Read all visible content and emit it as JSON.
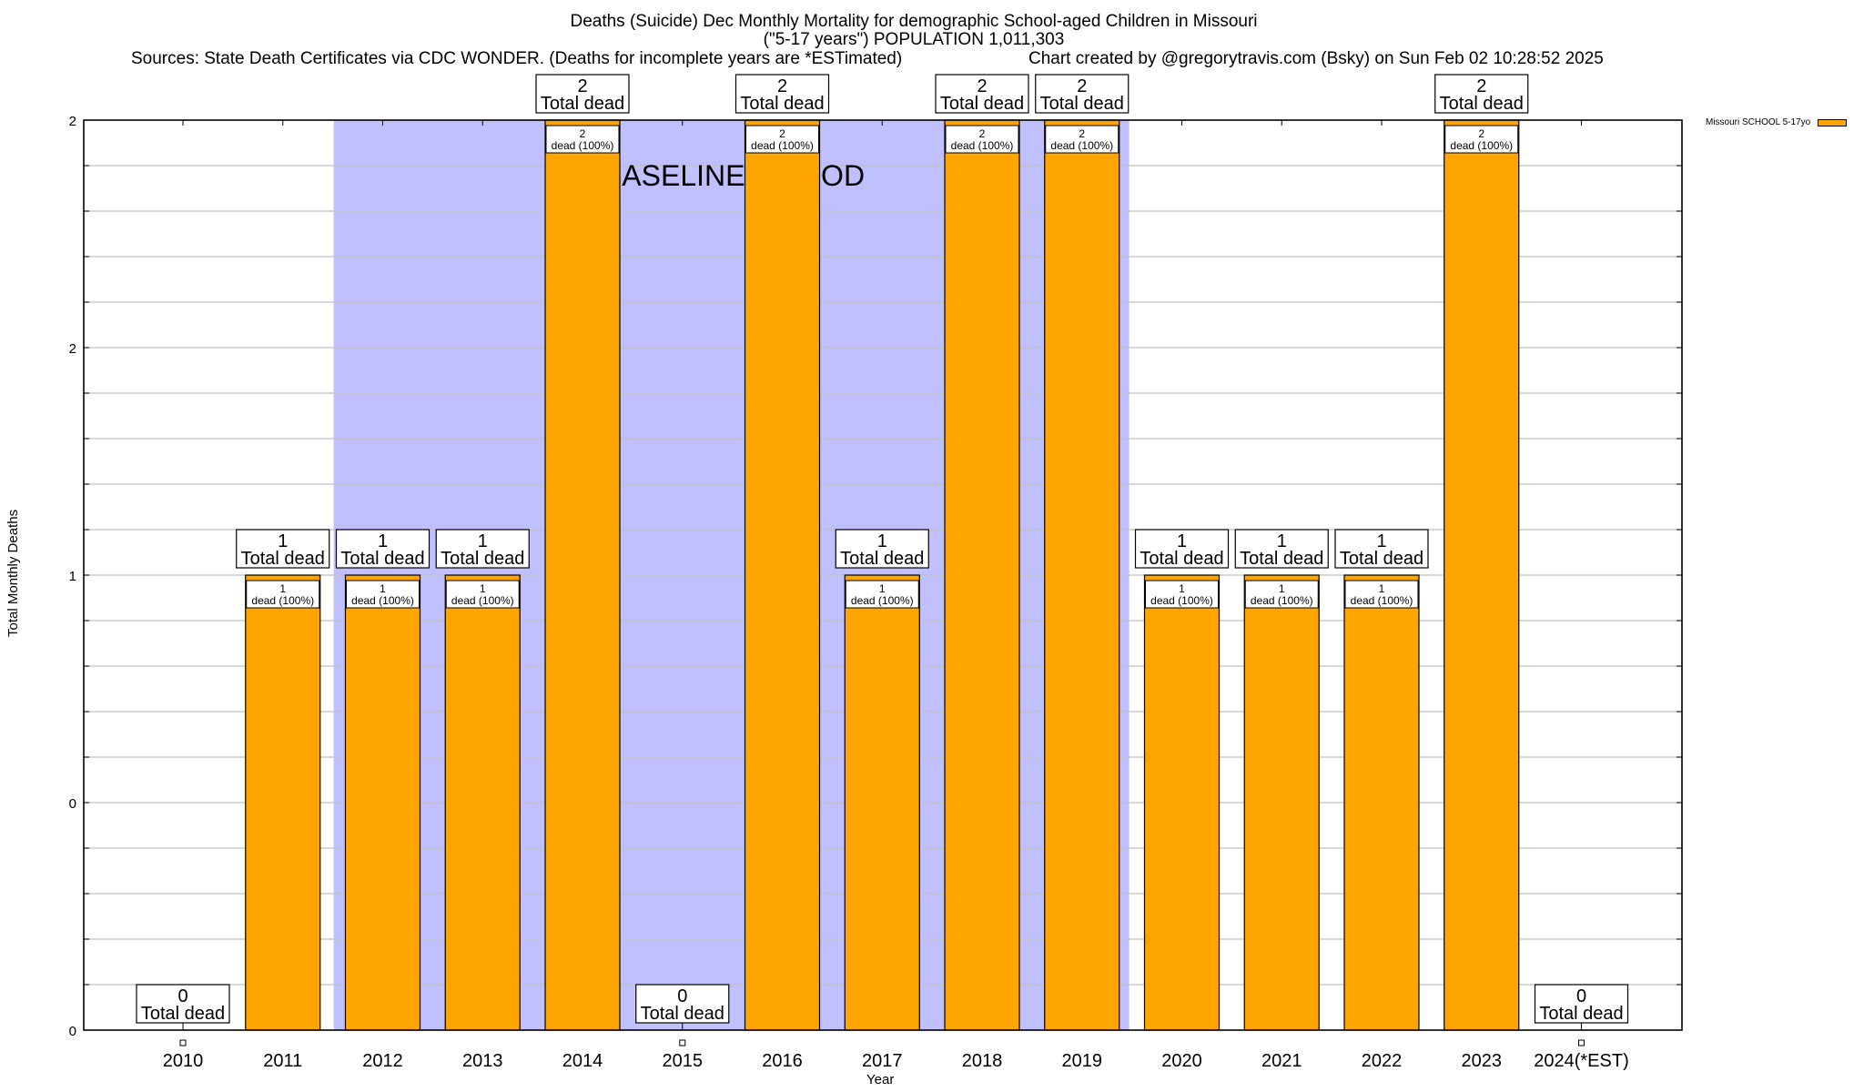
{
  "header": {
    "title": "Deaths (Suicide) Dec Monthly Mortality for demographic School-aged Children in Missouri",
    "subtitle": "(\"5-17 years\") POPULATION 1,011,303",
    "sources": "Sources: State Death Certificates via CDC WONDER. (Deaths for incomplete years are *ESTimated)",
    "credit": "Chart created by @gregorytravis.com (Bsky) on Sun Feb 02 10:28:52 2025"
  },
  "colors": {
    "bar": "#ffa500",
    "baseline_shade": "#c0c0ff",
    "grid": "#c0c0c0",
    "axis": "#000000"
  },
  "chart_data": {
    "type": "bar",
    "title": "Deaths (Suicide) Dec Monthly Mortality for demographic School-aged Children in Missouri",
    "xlabel": "Year",
    "ylabel": "Total Monthly Deaths",
    "ylim": [
      0,
      2
    ],
    "y_ticks": [
      {
        "value": 0,
        "label": "0"
      },
      {
        "value": 0.5,
        "label": "0"
      },
      {
        "value": 1,
        "label": "1"
      },
      {
        "value": 1.5,
        "label": "2"
      },
      {
        "value": 2,
        "label": "2"
      }
    ],
    "grid": true,
    "categories": [
      "2010",
      "2011",
      "2012",
      "2013",
      "2014",
      "2015",
      "2016",
      "2017",
      "2018",
      "2019",
      "2020",
      "2021",
      "2022",
      "2023",
      "2024(*EST)"
    ],
    "series": [
      {
        "name": "Missouri SCHOOL 5-17yo",
        "values": [
          0,
          1,
          1,
          1,
          2,
          0,
          2,
          1,
          2,
          2,
          1,
          1,
          1,
          2,
          0
        ]
      }
    ],
    "total_label_suffix": "Total dead",
    "inner_label_suffix": "dead (100%)",
    "shaded_region": {
      "label": "BASELINE PERIOD",
      "from_category": "2012",
      "to_category": "2019"
    },
    "legend": {
      "label": "Missouri SCHOOL 5-17yo",
      "position": "top-right outside"
    }
  }
}
